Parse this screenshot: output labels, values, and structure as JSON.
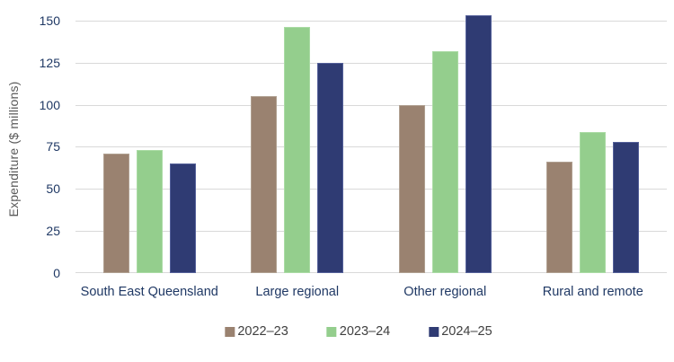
{
  "chart_data": {
    "type": "bar",
    "title": "",
    "xlabel": "",
    "ylabel": "Expenditure ($ millions)",
    "ylim": [
      0,
      150
    ],
    "yticks": [
      0,
      25,
      50,
      75,
      100,
      125,
      150
    ],
    "grid": true,
    "legend_position": "bottom",
    "categories": [
      "South East Queensland",
      "Large regional",
      "Other regional",
      "Rural and remote"
    ],
    "series": [
      {
        "name": "2022–23",
        "color": "#9a8270",
        "edge_color": "#b0a091",
        "values": [
          71,
          105,
          100,
          66
        ]
      },
      {
        "name": "2023–24",
        "color": "#94ce8d",
        "edge_color": "#aadba4",
        "values": [
          73,
          146,
          132,
          84
        ]
      },
      {
        "name": "2024–25",
        "color": "#2f3b73",
        "edge_color": "#55619a",
        "values": [
          65,
          125,
          153,
          78
        ]
      }
    ]
  },
  "colors": {
    "tick_label": "#1f3864",
    "category_label": "#1f3864",
    "axis_title": "#595959",
    "legend_text": "#404040",
    "gridline": "#d9d9d9",
    "background": "#ffffff"
  }
}
